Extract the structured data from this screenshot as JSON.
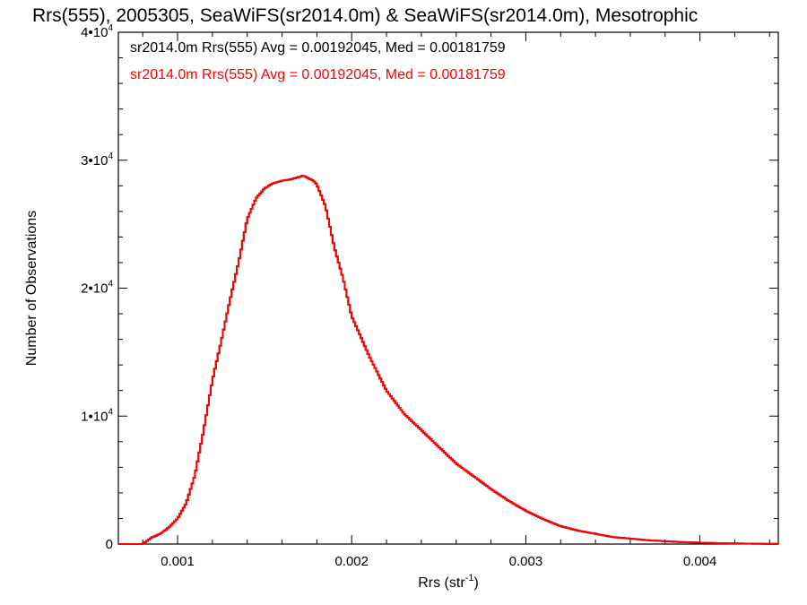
{
  "chart_data": {
    "type": "histogram",
    "title": "Rrs(555), 2005305, SeaWiFS(sr2014.0m) & SeaWiFS(sr2014.0m), Mesotrophic",
    "xlabel_main": "Rrs (str",
    "xlabel_sup": "-1",
    "xlabel_tail": ")",
    "ylabel": "Number of Observations",
    "xlim": [
      0.00066,
      0.00445
    ],
    "ylim": [
      0,
      40000
    ],
    "x_ticks": [
      {
        "value": 0.001,
        "label": "0.001"
      },
      {
        "value": 0.002,
        "label": "0.002"
      },
      {
        "value": 0.003,
        "label": "0.003"
      },
      {
        "value": 0.004,
        "label": "0.004"
      }
    ],
    "y_ticks": [
      {
        "value": 0,
        "base": "0",
        "exp": ""
      },
      {
        "value": 10000,
        "base": "1•10",
        "exp": "4"
      },
      {
        "value": 20000,
        "base": "2•10",
        "exp": "4"
      },
      {
        "value": 30000,
        "base": "3•10",
        "exp": "4"
      },
      {
        "value": 40000,
        "base": "4•10",
        "exp": "4"
      }
    ],
    "legend": [
      {
        "text": "sr2014.0m Rrs(555) Avg = 0.00192045, Med = 0.00181759",
        "color": "#000000"
      },
      {
        "text": "sr2014.0m Rrs(555) Avg = 0.00192045, Med = 0.00181759",
        "color": "#ff0000"
      }
    ],
    "series": [
      {
        "color": "#000000",
        "curve": "primary"
      },
      {
        "color": "#ff0000",
        "curve": "primary"
      }
    ],
    "curve": {
      "x": [
        0.00066,
        0.0008,
        0.00082,
        0.00085,
        0.0009,
        0.00095,
        0.001,
        0.00105,
        0.0011,
        0.00115,
        0.0012,
        0.00125,
        0.0013,
        0.00135,
        0.0014,
        0.00145,
        0.0015,
        0.00155,
        0.0016,
        0.00165,
        0.0017,
        0.00172,
        0.00175,
        0.00178,
        0.0018,
        0.00185,
        0.0019,
        0.00195,
        0.002,
        0.0021,
        0.0022,
        0.0023,
        0.0024,
        0.0025,
        0.0026,
        0.0027,
        0.0028,
        0.0029,
        0.003,
        0.0031,
        0.0032,
        0.0033,
        0.0035,
        0.0037,
        0.0039,
        0.0041,
        0.0043,
        0.00445
      ],
      "y": [
        0,
        0,
        200,
        500,
        800,
        1300,
        2000,
        3200,
        5400,
        8900,
        12800,
        15800,
        19000,
        22000,
        25400,
        27000,
        27800,
        28200,
        28400,
        28500,
        28700,
        28800,
        28600,
        28400,
        28100,
        26400,
        23200,
        20800,
        17800,
        14700,
        12000,
        10200,
        8900,
        7600,
        6300,
        5300,
        4300,
        3400,
        2600,
        1950,
        1400,
        1050,
        550,
        300,
        150,
        70,
        30,
        10
      ]
    }
  }
}
